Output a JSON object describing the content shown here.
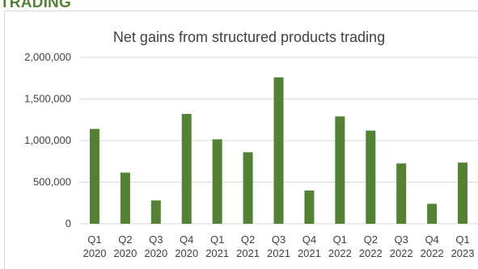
{
  "section_heading": "TRADING",
  "colors": {
    "heading": "#548235",
    "bar": "#548235",
    "gridline": "#d9d9d9",
    "text": "#404040"
  },
  "chart_data": {
    "type": "bar",
    "title": "Net gains from structured products trading",
    "xlabel": "",
    "ylabel": "",
    "ylim": [
      0,
      2000000
    ],
    "yticks": [
      0,
      500000,
      1000000,
      1500000,
      2000000
    ],
    "ytick_labels": [
      "0",
      "500,000",
      "1,000,000",
      "1,500,000",
      "2,000,000"
    ],
    "grid": true,
    "legend": "none",
    "categories": [
      [
        "Q1",
        "2020"
      ],
      [
        "Q2",
        "2020"
      ],
      [
        "Q3",
        "2020"
      ],
      [
        "Q4",
        "2020"
      ],
      [
        "Q1",
        "2021"
      ],
      [
        "Q2",
        "2021"
      ],
      [
        "Q3",
        "2021"
      ],
      [
        "Q4",
        "2021"
      ],
      [
        "Q1",
        "2022"
      ],
      [
        "Q2",
        "2022"
      ],
      [
        "Q3",
        "2022"
      ],
      [
        "Q4",
        "2022"
      ],
      [
        "Q1",
        "2023"
      ]
    ],
    "values": [
      1140000,
      615000,
      280000,
      1320000,
      1015000,
      860000,
      1760000,
      400000,
      1290000,
      1120000,
      725000,
      240000,
      735000
    ]
  }
}
